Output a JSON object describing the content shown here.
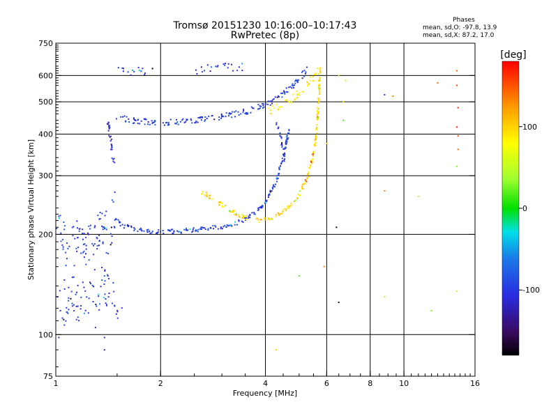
{
  "chart_data": {
    "type": "scatter",
    "title": "Tromsø 20151230 10:16:00–10:17:43",
    "subtitle": "RwPretec (8p)",
    "xlabel": "Frequency [MHz]",
    "ylabel": "Stationary phase Virtual Height [km]",
    "x_scale": "log",
    "y_scale": "log",
    "xlim": [
      1,
      16
    ],
    "ylim": [
      75,
      750
    ],
    "x_ticks": [
      1,
      2,
      4,
      6,
      8,
      10,
      16
    ],
    "y_ticks": [
      75,
      100,
      200,
      300,
      400,
      500,
      600,
      750
    ],
    "x_gridlines": [
      2,
      4,
      6,
      8,
      10
    ],
    "y_gridlines": [
      100,
      200,
      300,
      400,
      500,
      600
    ],
    "grid": true,
    "stats": {
      "heading": "Phases",
      "line1": "mean, sd,O: -97.8, 13.9",
      "line2": "mean, sd,X: 87.2, 17.0"
    },
    "colorbar": {
      "label": "[deg]",
      "range": [
        -180,
        180
      ],
      "tick_labels": [
        "100",
        "0",
        "-100"
      ],
      "tick_values": [
        100,
        0,
        -100
      ]
    },
    "colors": {
      "o_mode": "#3a3adf",
      "x_mode": "#e9e325",
      "o_mode_alt": "#2ab0d8",
      "x_mode_alt": "#f5a623",
      "grid": "#000000"
    },
    "traces": [
      {
        "mode": "O",
        "phase": -100,
        "scatter": 0.015,
        "density": 6,
        "points": [
          [
            1.48,
            222
          ],
          [
            1.55,
            213
          ],
          [
            1.7,
            207
          ],
          [
            1.9,
            204
          ],
          [
            2.2,
            204
          ],
          [
            2.6,
            207
          ],
          [
            3.0,
            211
          ],
          [
            3.3,
            216
          ],
          [
            3.6,
            226
          ],
          [
            3.9,
            242
          ],
          [
            4.1,
            262
          ],
          [
            4.3,
            290
          ],
          [
            4.45,
            330
          ],
          [
            4.6,
            380
          ],
          [
            4.7,
            420
          ]
        ]
      },
      {
        "mode": "X",
        "phase": 100,
        "scatter": 0.015,
        "density": 6,
        "points": [
          [
            2.6,
            270
          ],
          [
            3.0,
            245
          ],
          [
            3.4,
            226
          ],
          [
            3.8,
            220
          ],
          [
            4.2,
            224
          ],
          [
            4.6,
            238
          ],
          [
            5.0,
            262
          ],
          [
            5.3,
            300
          ],
          [
            5.5,
            350
          ],
          [
            5.6,
            400
          ],
          [
            5.66,
            460
          ],
          [
            5.7,
            520
          ],
          [
            5.72,
            580
          ],
          [
            5.75,
            630
          ]
        ]
      },
      {
        "mode": "O",
        "phase": -100,
        "scatter": 0.02,
        "density": 6,
        "points": [
          [
            1.5,
            448
          ],
          [
            1.7,
            438
          ],
          [
            2.0,
            432
          ],
          [
            2.4,
            437
          ],
          [
            2.8,
            446
          ],
          [
            3.2,
            458
          ],
          [
            3.6,
            470
          ],
          [
            4.0,
            490
          ],
          [
            4.4,
            520
          ],
          [
            4.8,
            560
          ],
          [
            5.1,
            600
          ],
          [
            5.3,
            630
          ]
        ]
      },
      {
        "mode": "X",
        "phase": 90,
        "scatter": 0.025,
        "density": 5,
        "points": [
          [
            4.1,
            470
          ],
          [
            4.5,
            490
          ],
          [
            4.9,
            520
          ],
          [
            5.2,
            555
          ],
          [
            5.5,
            590
          ],
          [
            5.7,
            620
          ]
        ]
      },
      {
        "mode": "O",
        "phase": -100,
        "scatter": 0.015,
        "density": 4,
        "points": [
          [
            4.3,
            430
          ],
          [
            4.4,
            400
          ],
          [
            4.5,
            360
          ],
          [
            4.55,
            330
          ]
        ]
      },
      {
        "mode": "O",
        "phase": -110,
        "scatter": 0.02,
        "density": 4,
        "points": [
          [
            1.4,
            460
          ],
          [
            1.42,
            420
          ],
          [
            1.44,
            380
          ],
          [
            1.45,
            350
          ],
          [
            1.47,
            330
          ]
        ]
      },
      {
        "mode": "O",
        "phase": -100,
        "scatter": 0.12,
        "density": 7,
        "points": [
          [
            1.0,
            210
          ],
          [
            1.1,
            200
          ],
          [
            1.2,
            190
          ],
          [
            1.3,
            200
          ],
          [
            1.4,
            215
          ],
          [
            1.45,
            240
          ]
        ]
      },
      {
        "mode": "O",
        "phase": -100,
        "scatter": 0.12,
        "density": 7,
        "points": [
          [
            1.0,
            125
          ],
          [
            1.1,
            120
          ],
          [
            1.2,
            128
          ],
          [
            1.3,
            132
          ],
          [
            1.4,
            135
          ],
          [
            1.5,
            125
          ]
        ]
      },
      {
        "mode": "O",
        "phase": -100,
        "scatter": 0.18,
        "density": 4,
        "points": [
          [
            1.05,
            160
          ],
          [
            1.2,
            170
          ],
          [
            1.35,
            160
          ],
          [
            1.45,
            180
          ]
        ]
      },
      {
        "mode": "O",
        "phase": -110,
        "scatter": 0.03,
        "density": 3,
        "points": [
          [
            1.5,
            630
          ],
          [
            1.6,
            620
          ],
          [
            1.9,
            615
          ]
        ]
      },
      {
        "mode": "O",
        "phase": -105,
        "scatter": 0.03,
        "density": 3,
        "points": [
          [
            2.5,
            622
          ],
          [
            2.8,
            628
          ],
          [
            3.1,
            636
          ],
          [
            3.5,
            640
          ]
        ]
      }
    ],
    "isolated_points": [
      [
        6.5,
        600,
        100
      ],
      [
        6.8,
        580,
        100
      ],
      [
        8.8,
        525,
        -110
      ],
      [
        9.3,
        520,
        140
      ],
      [
        12.5,
        570,
        150
      ],
      [
        14.2,
        560,
        160
      ],
      [
        14.2,
        620,
        150
      ],
      [
        14.3,
        480,
        170
      ],
      [
        14.2,
        420,
        175
      ],
      [
        14.3,
        395,
        160
      ],
      [
        14.3,
        360,
        150
      ],
      [
        14.2,
        320,
        30
      ],
      [
        8.8,
        270,
        140
      ],
      [
        11.0,
        260,
        40
      ],
      [
        6.7,
        440,
        20
      ],
      [
        6.0,
        375,
        100
      ],
      [
        6.7,
        500,
        100
      ],
      [
        6.4,
        210,
        -170
      ],
      [
        6.5,
        125,
        -160
      ],
      [
        5.9,
        160,
        140
      ],
      [
        5.0,
        150,
        20
      ],
      [
        4.3,
        90,
        100
      ],
      [
        8.8,
        130,
        40
      ],
      [
        12.0,
        118,
        30
      ],
      [
        14.2,
        135,
        50
      ],
      [
        1.3,
        105,
        -120
      ],
      [
        1.38,
        98,
        -110
      ],
      [
        1.02,
        98,
        -110
      ],
      [
        1.38,
        150,
        -90
      ],
      [
        1.38,
        90,
        -130
      ]
    ]
  }
}
